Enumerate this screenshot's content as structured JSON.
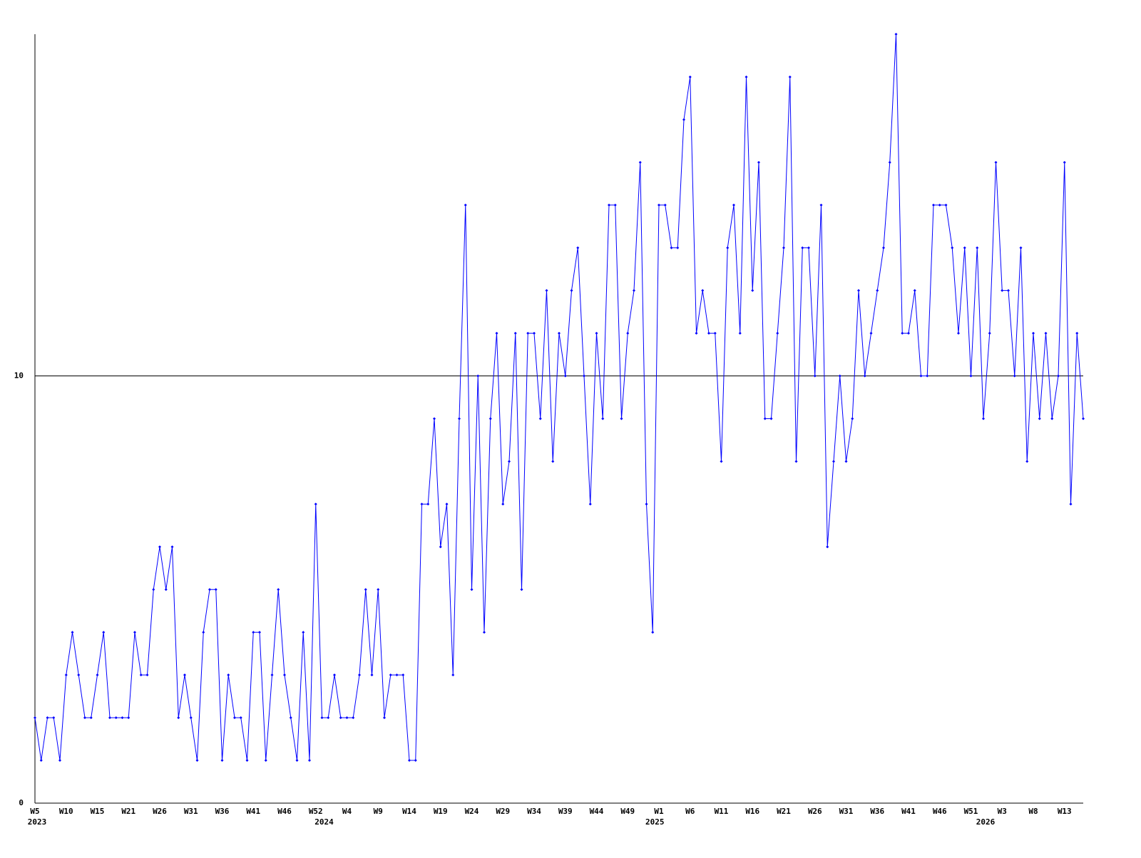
{
  "chart_data": {
    "type": "line",
    "categories": [
      "W5",
      null,
      null,
      null,
      null,
      "W10",
      null,
      null,
      null,
      null,
      "W15",
      null,
      null,
      null,
      null,
      "W21",
      null,
      null,
      null,
      null,
      "W26",
      null,
      null,
      null,
      null,
      "W31",
      null,
      null,
      null,
      null,
      "W36",
      null,
      null,
      null,
      null,
      "W41",
      null,
      null,
      null,
      null,
      "W46",
      null,
      null,
      null,
      null,
      "W52",
      null,
      null,
      null,
      null,
      "W4",
      null,
      null,
      null,
      null,
      "W9",
      null,
      null,
      null,
      null,
      "W14",
      null,
      null,
      null,
      null,
      "W19",
      null,
      null,
      null,
      null,
      "W24",
      null,
      null,
      null,
      null,
      "W29",
      null,
      null,
      null,
      null,
      "W34",
      null,
      null,
      null,
      null,
      "W39",
      null,
      null,
      null,
      null,
      "W44",
      null,
      null,
      null,
      null,
      "W49",
      null,
      null,
      null,
      null,
      "W1",
      null,
      null,
      null,
      null,
      "W6",
      null,
      null,
      null,
      null,
      "W11",
      null,
      null,
      null,
      null,
      "W16",
      null,
      null,
      null,
      null,
      "W21",
      null,
      null,
      null,
      null,
      "W26",
      null,
      null,
      null,
      null,
      "W31",
      null,
      null,
      null,
      null,
      "W36",
      null,
      null,
      null,
      null,
      "W41",
      null,
      null,
      null,
      null,
      "W46",
      null,
      null,
      null,
      null,
      "W51",
      null,
      null,
      null,
      null,
      "W3",
      null,
      null,
      null,
      null,
      "W8",
      null,
      null,
      null,
      null,
      "W13",
      null,
      null,
      null
    ],
    "year_categories": [
      "2023",
      null,
      null,
      null,
      null,
      null,
      null,
      null,
      null,
      null,
      null,
      null,
      null,
      null,
      null,
      null,
      null,
      null,
      null,
      null,
      null,
      null,
      null,
      null,
      null,
      null,
      null,
      null,
      null,
      null,
      null,
      null,
      null,
      null,
      null,
      null,
      null,
      null,
      null,
      null,
      null,
      null,
      null,
      null,
      null,
      null,
      "2024",
      null,
      null,
      null,
      null,
      null,
      null,
      null,
      null,
      null,
      null,
      null,
      null,
      null,
      null,
      null,
      null,
      null,
      null,
      null,
      null,
      null,
      null,
      null,
      null,
      null,
      null,
      null,
      null,
      null,
      null,
      null,
      null,
      null,
      null,
      null,
      null,
      null,
      null,
      null,
      null,
      null,
      null,
      null,
      null,
      null,
      null,
      null,
      null,
      null,
      null,
      null,
      null,
      "2025",
      null,
      null,
      null,
      null,
      null,
      null,
      null,
      null,
      null,
      null,
      null,
      null,
      null,
      null,
      null,
      null,
      null,
      null,
      null,
      null,
      null,
      null,
      null,
      null,
      null,
      null,
      null,
      null,
      null,
      null,
      null,
      null,
      null,
      null,
      null,
      null,
      null,
      null,
      null,
      null,
      null,
      null,
      null,
      null,
      null,
      null,
      null,
      null,
      null,
      null,
      null,
      null,
      "2026",
      null,
      null,
      null,
      null,
      null,
      null,
      null,
      null,
      null,
      null,
      null,
      null,
      null,
      null,
      null,
      null
    ],
    "color": "#0000ff",
    "values": [
      2,
      1,
      2,
      2,
      1,
      3,
      4,
      3,
      2,
      2,
      3,
      4,
      2,
      2,
      2,
      2,
      4,
      3,
      3,
      5,
      6,
      5,
      6,
      2,
      3,
      2,
      1,
      4,
      5,
      5,
      1,
      3,
      2,
      2,
      1,
      4,
      4,
      1,
      3,
      5,
      3,
      2,
      1,
      4,
      1,
      7,
      2,
      2,
      3,
      2,
      2,
      2,
      3,
      5,
      3,
      5,
      2,
      3,
      3,
      3,
      1,
      1,
      7,
      7,
      9,
      6,
      7,
      3,
      9,
      14,
      5,
      10,
      4,
      9,
      11,
      7,
      8,
      11,
      5,
      11,
      11,
      9,
      12,
      8,
      11,
      10,
      12,
      13,
      10,
      7,
      11,
      9,
      14,
      14,
      9,
      11,
      12,
      15,
      7,
      4,
      14,
      14,
      13,
      13,
      16,
      17,
      11,
      12,
      11,
      11,
      8,
      13,
      14,
      11,
      17,
      12,
      15,
      9,
      9,
      11,
      13,
      17,
      8,
      13,
      13,
      10,
      14,
      6,
      8,
      10,
      8,
      9,
      12,
      10,
      11,
      12,
      13,
      15,
      18,
      11,
      11,
      12,
      10,
      10,
      14,
      14,
      14,
      13,
      11,
      13,
      10,
      13,
      9,
      11,
      15,
      12,
      12,
      10,
      13,
      8,
      11,
      9,
      11,
      9,
      10,
      15,
      7,
      11,
      9
    ],
    "ylim": [
      0,
      18
    ],
    "yticks": [
      0,
      10
    ],
    "grid": true
  }
}
